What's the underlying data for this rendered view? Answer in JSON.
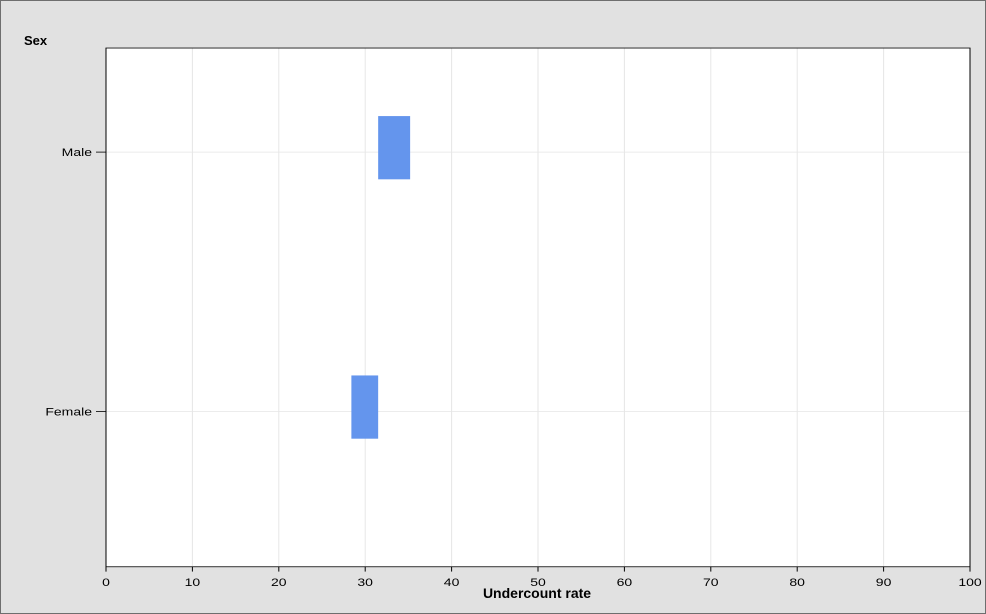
{
  "chart_data": {
    "type": "bar",
    "orientation": "horizontal",
    "y_axis_title": "Sex",
    "xlabel": "Undercount rate",
    "categories": [
      "Male",
      "Female"
    ],
    "bars": [
      {
        "category": "Male",
        "low": 31.5,
        "high": 35.2
      },
      {
        "category": "Female",
        "low": 28.4,
        "high": 31.5
      }
    ],
    "xlim": [
      0,
      100
    ],
    "xticks": [
      0,
      10,
      20,
      30,
      40,
      50,
      60,
      70,
      80,
      90,
      100
    ],
    "grid": true,
    "bar_color": "#6495ed"
  }
}
